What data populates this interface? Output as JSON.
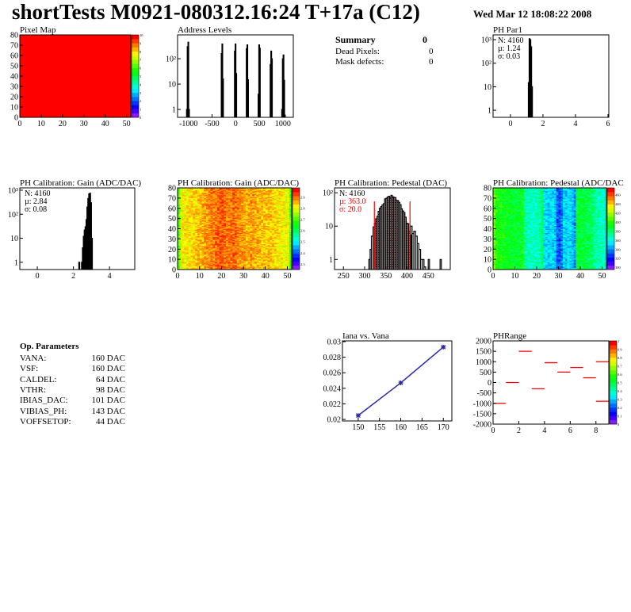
{
  "header": {
    "title": "shortTests M0921-080312.16:24 T+17a (C12)",
    "date": "Wed Mar 12 18:08:22 2008"
  },
  "summary": {
    "title": "Summary",
    "value": "0",
    "rows": [
      {
        "label": "Dead Pixels:",
        "value": "0"
      },
      {
        "label": "Mask defects:",
        "value": "0"
      }
    ]
  },
  "op_params": {
    "title": "Op. Parameters",
    "rows": [
      {
        "label": "VANA:",
        "value": "160 DAC"
      },
      {
        "label": "VSF:",
        "value": "160 DAC"
      },
      {
        "label": "CALDEL:",
        "value": "64 DAC"
      },
      {
        "label": "VTHR:",
        "value": "98 DAC"
      },
      {
        "label": "IBIAS_DAC:",
        "value": "101 DAC"
      },
      {
        "label": "VIBIAS_PH:",
        "value": "143 DAC"
      },
      {
        "label": "VOFFSETOP:",
        "value": "44 DAC"
      }
    ]
  },
  "colors": {
    "hist_line": "#000000",
    "fit": "#ff0000",
    "graph": "#2a2aa8",
    "phrange": "#ff0000"
  },
  "chart_data": [
    {
      "id": "pixelmap",
      "type": "heatmap",
      "title": "Pixel Map",
      "xlim": [
        0,
        52
      ],
      "ylim": [
        0,
        80
      ],
      "xticks": [
        0,
        10,
        20,
        30,
        40,
        50
      ],
      "yticks": [
        0,
        10,
        20,
        30,
        40,
        50,
        60,
        70,
        80
      ],
      "zlim": [
        0,
        10
      ],
      "zticks": [
        0,
        1,
        2,
        3,
        4,
        5,
        6,
        7,
        8,
        9,
        10
      ],
      "uniform_value": 10
    },
    {
      "id": "address",
      "type": "bar",
      "title": "Address Levels",
      "xlim": [
        -1230,
        1220
      ],
      "ylim": [
        0.49,
        870
      ],
      "log_y": true,
      "xticks": [
        -1000,
        -500,
        0,
        500,
        1000
      ],
      "yticks": [
        {
          "v": 1,
          "t": "1"
        },
        {
          "v": 10,
          "t": "10"
        },
        {
          "v": 100,
          "t": "10²"
        }
      ],
      "bins": [
        [
          -1040,
          -1025,
          1
        ],
        [
          -1025,
          -1010,
          300
        ],
        [
          -1010,
          -995,
          450
        ],
        [
          -995,
          -980,
          1
        ],
        [
          -305,
          -290,
          160
        ],
        [
          -290,
          -275,
          380
        ],
        [
          -275,
          -260,
          16
        ],
        [
          -25,
          -10,
          200
        ],
        [
          -10,
          5,
          380
        ],
        [
          5,
          20,
          26
        ],
        [
          225,
          240,
          250
        ],
        [
          240,
          255,
          350
        ],
        [
          255,
          270,
          15
        ],
        [
          475,
          490,
          4
        ],
        [
          490,
          505,
          350
        ],
        [
          505,
          520,
          260
        ],
        [
          730,
          745,
          60
        ],
        [
          745,
          760,
          200
        ],
        [
          760,
          775,
          100
        ],
        [
          975,
          990,
          1
        ],
        [
          990,
          1005,
          100
        ],
        [
          1005,
          1020,
          140
        ],
        [
          1020,
          1035,
          14
        ],
        [
          1035,
          1050,
          0.6
        ]
      ]
    },
    {
      "id": "phpar1",
      "type": "bar",
      "title": "PH Par1",
      "xlim": [
        -1.07,
        6.05
      ],
      "ylim": [
        0.5,
        1600
      ],
      "log_y": true,
      "xticks": [
        0,
        2,
        4,
        6
      ],
      "yticks": [
        {
          "v": 1,
          "t": "1"
        },
        {
          "v": 10,
          "t": "10"
        },
        {
          "v": 100,
          "t": "10²"
        },
        {
          "v": 1000,
          "t": "10³"
        }
      ],
      "stats": [
        "N: 4160",
        "µ: 1.24",
        "σ: 0.03"
      ],
      "bins": [
        [
          1.1,
          1.15,
          15
        ],
        [
          1.15,
          1.2,
          1100
        ],
        [
          1.2,
          1.25,
          1000
        ],
        [
          1.25,
          1.3,
          500
        ],
        [
          1.3,
          1.35,
          10
        ]
      ]
    },
    {
      "id": "gainhist",
      "type": "bar",
      "title": "PH Calibration: Gain (ADC/DAC)",
      "xlim": [
        -0.97,
        5.4
      ],
      "ylim": [
        0.5,
        1250
      ],
      "log_y": true,
      "xticks": [
        0,
        2,
        4
      ],
      "yticks": [
        {
          "v": 1,
          "t": "1"
        },
        {
          "v": 10,
          "t": "10"
        },
        {
          "v": 100,
          "t": "10²"
        },
        {
          "v": 1000,
          "t": "10³"
        }
      ],
      "stats": [
        "N: 4160",
        "µ: 2.84",
        "σ: 0.08"
      ],
      "bins": [
        [
          2.3,
          2.35,
          1
        ],
        [
          2.45,
          2.5,
          1
        ],
        [
          2.5,
          2.55,
          4
        ],
        [
          2.55,
          2.6,
          12
        ],
        [
          2.6,
          2.65,
          22
        ],
        [
          2.65,
          2.7,
          30
        ],
        [
          2.7,
          2.75,
          60
        ],
        [
          2.75,
          2.8,
          200
        ],
        [
          2.8,
          2.85,
          450
        ],
        [
          2.85,
          2.9,
          700
        ],
        [
          2.9,
          2.95,
          750
        ],
        [
          2.95,
          3.0,
          300
        ],
        [
          3.0,
          3.05,
          10
        ]
      ]
    },
    {
      "id": "gainmap",
      "type": "heatmap",
      "title": "PH Calibration: Gain (ADC/DAC)",
      "xlim": [
        0,
        52
      ],
      "ylim": [
        0,
        80
      ],
      "xticks": [
        0,
        10,
        20,
        30,
        40,
        50
      ],
      "yticks": [
        0,
        10,
        20,
        30,
        40,
        50,
        60,
        70,
        80
      ],
      "zlim": [
        2.25,
        2.98
      ],
      "zticks": [
        2.3,
        2.4,
        2.5,
        2.6,
        2.7,
        2.8,
        2.9
      ],
      "column_profile": [
        2.7,
        2.8,
        2.82,
        2.82,
        2.83,
        2.83,
        2.84,
        2.84,
        2.85,
        2.86,
        2.86,
        2.87,
        2.88,
        2.88,
        2.89,
        2.9,
        2.9,
        2.91,
        2.92,
        2.92,
        2.92,
        2.91,
        2.9,
        2.9,
        2.91,
        2.92,
        2.91,
        2.9,
        2.89,
        2.88,
        2.88,
        2.87,
        2.87,
        2.88,
        2.88,
        2.87,
        2.87,
        2.86,
        2.86,
        2.86,
        2.85,
        2.86,
        2.85,
        2.84,
        2.84,
        2.83,
        2.83,
        2.82,
        2.82,
        2.81,
        2.8,
        2.7
      ]
    },
    {
      "id": "pedhist",
      "type": "bar",
      "title": "PH Calibration: Pedestal (DAC)",
      "xlim": [
        229,
        502
      ],
      "ylim": [
        0.5,
        140
      ],
      "log_y": true,
      "xticks": [
        250,
        300,
        350,
        400,
        450
      ],
      "yticks": [
        {
          "v": 1,
          "t": "1"
        },
        {
          "v": 10,
          "t": "10"
        },
        {
          "v": 100,
          "t": "10²"
        }
      ],
      "stats": [
        "N: 4160"
      ],
      "fit_stats": [
        "µ: 363.0",
        "σ: 20.0"
      ],
      "gauss": {
        "mean": 363,
        "sigma": 20,
        "peak": 75,
        "range": [
          323,
          407
        ]
      },
      "tail_bins": [
        [
          310,
          313,
          1
        ],
        [
          313,
          316,
          2
        ],
        [
          316,
          320,
          5
        ],
        [
          408,
          412,
          10
        ],
        [
          412,
          416,
          6
        ],
        [
          416,
          420,
          7
        ],
        [
          420,
          424,
          5
        ],
        [
          424,
          428,
          3
        ],
        [
          428,
          432,
          2
        ],
        [
          432,
          436,
          1
        ],
        [
          436,
          440,
          1
        ],
        [
          440,
          444,
          0.6
        ],
        [
          450,
          453,
          1
        ],
        [
          478,
          481,
          1
        ]
      ]
    },
    {
      "id": "pedmap",
      "type": "heatmap",
      "title": "PH Calibration: Pedestal (ADC/DAC",
      "xlim": [
        0,
        52
      ],
      "ylim": [
        0,
        80
      ],
      "xticks": [
        0,
        10,
        20,
        30,
        40,
        50
      ],
      "yticks": [
        0,
        10,
        20,
        30,
        40,
        50,
        60,
        70,
        80
      ],
      "zlim": [
        295,
        475
      ],
      "zticks": [
        300,
        320,
        340,
        360,
        380,
        400,
        420,
        440,
        460
      ],
      "column_profile": [
        410,
        398,
        396,
        395,
        394,
        393,
        392,
        392,
        390,
        390,
        389,
        388,
        388,
        395,
        370,
        368,
        366,
        365,
        364,
        365,
        366,
        368,
        380,
        352,
        350,
        348,
        352,
        350,
        345,
        330,
        328,
        335,
        350,
        348,
        352,
        350,
        345,
        338,
        390,
        388,
        386,
        385,
        384,
        383,
        382,
        380,
        372,
        370,
        368,
        366,
        365,
        362
      ]
    },
    {
      "id": "iana",
      "type": "line",
      "title": "Iana vs. Vana",
      "xlim": [
        146.3,
        172
      ],
      "ylim": [
        0.0198,
        0.0301
      ],
      "xticks": [
        150,
        155,
        160,
        165,
        170
      ],
      "yticks": [
        0.02,
        0.022,
        0.024,
        0.026,
        0.028,
        0.03
      ],
      "x": [
        150,
        160,
        170
      ],
      "y": [
        0.0205,
        0.0247,
        0.0293
      ]
    },
    {
      "id": "phrange",
      "type": "heatmap",
      "title": "PHRange",
      "xlim": [
        0,
        9
      ],
      "ylim": [
        -2000,
        2000
      ],
      "xticks": [
        0,
        2,
        4,
        6,
        8
      ],
      "yticks": [
        -2000,
        -1500,
        -1000,
        -500,
        0,
        500,
        1000,
        1500,
        2000
      ],
      "zlim": [
        0,
        1
      ],
      "zticks": [
        0,
        0.1,
        0.2,
        0.3,
        0.4,
        0.5,
        0.6,
        0.7,
        0.8,
        0.9,
        1
      ],
      "segments": [
        [
          0,
          -1000
        ],
        [
          1,
          0
        ],
        [
          2,
          1500
        ],
        [
          3,
          -300
        ],
        [
          4,
          950
        ],
        [
          5,
          500
        ],
        [
          6,
          720
        ],
        [
          7,
          230
        ],
        [
          8,
          1000
        ],
        [
          8,
          -900
        ]
      ]
    }
  ]
}
